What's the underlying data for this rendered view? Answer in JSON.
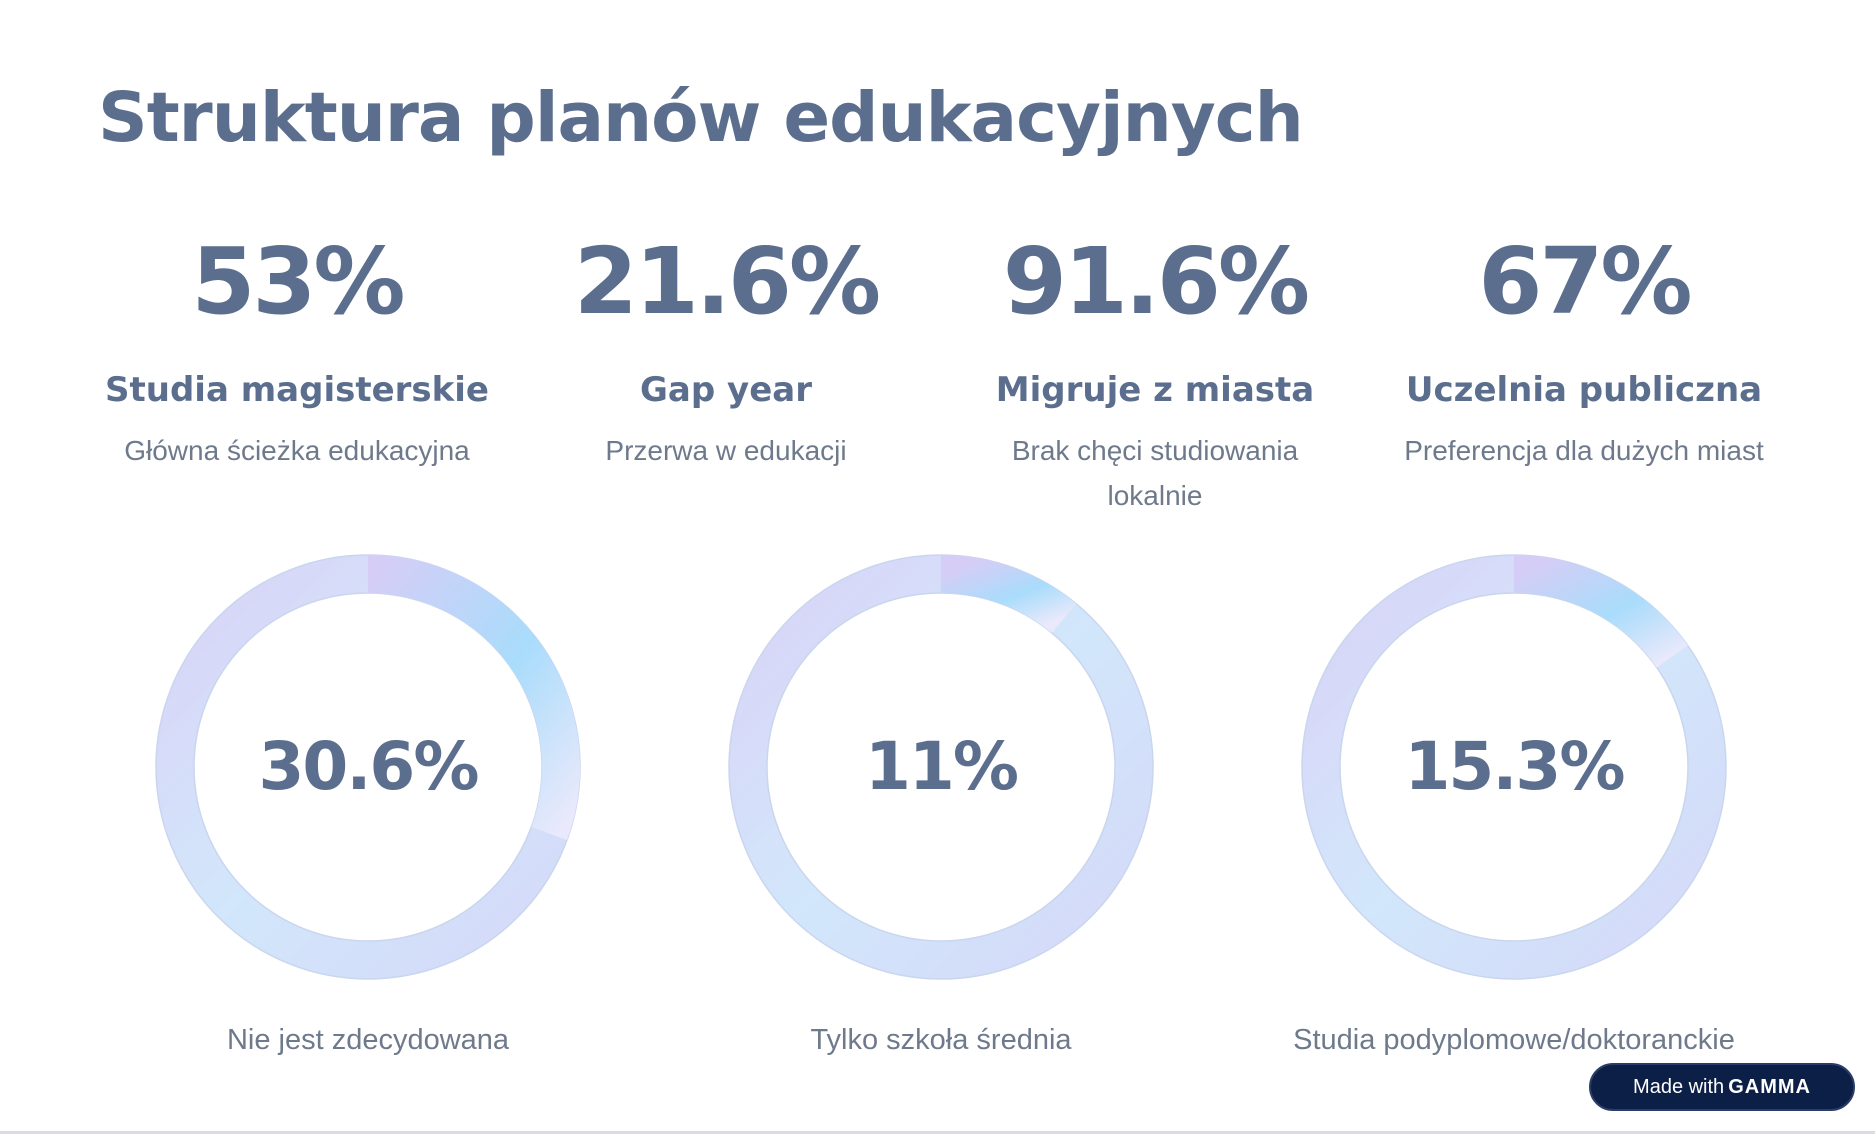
{
  "title": "Struktura planów edukacyjnych",
  "stats": [
    {
      "value": "53%",
      "label": "Studia magisterskie",
      "desc": "Główna ścieżka edukacyjna"
    },
    {
      "value": "21.6%",
      "label": "Gap year",
      "desc": "Przerwa w edukacji"
    },
    {
      "value": "91.6%",
      "label": "Migruje z miasta",
      "desc": "Brak chęci studiowania lokalnie"
    },
    {
      "value": "67%",
      "label": "Uczelnia publiczna",
      "desc": "Preferencja dla dużych miast"
    }
  ],
  "rings": [
    {
      "value": "30.6%",
      "fraction": 0.306,
      "label": "Nie jest zdecydowana"
    },
    {
      "value": "11%",
      "fraction": 0.11,
      "label": "Tylko szkoła średnia"
    },
    {
      "value": "15.3%",
      "fraction": 0.153,
      "label": "Studia podyplomowe/doktoranckie"
    }
  ],
  "badge": {
    "prefix": "Made with",
    "brand": "GAMMA"
  },
  "colors": {
    "text_primary": "#5b6e8e",
    "text_secondary": "#6e7a8c",
    "ring_track_light": "#dbe6fb",
    "ring_progress_start": "#d6cdf6",
    "ring_progress_mid": "#a9dcfb",
    "ring_progress_end": "#eae9fb",
    "badge_bg": "#0c1f47"
  }
}
